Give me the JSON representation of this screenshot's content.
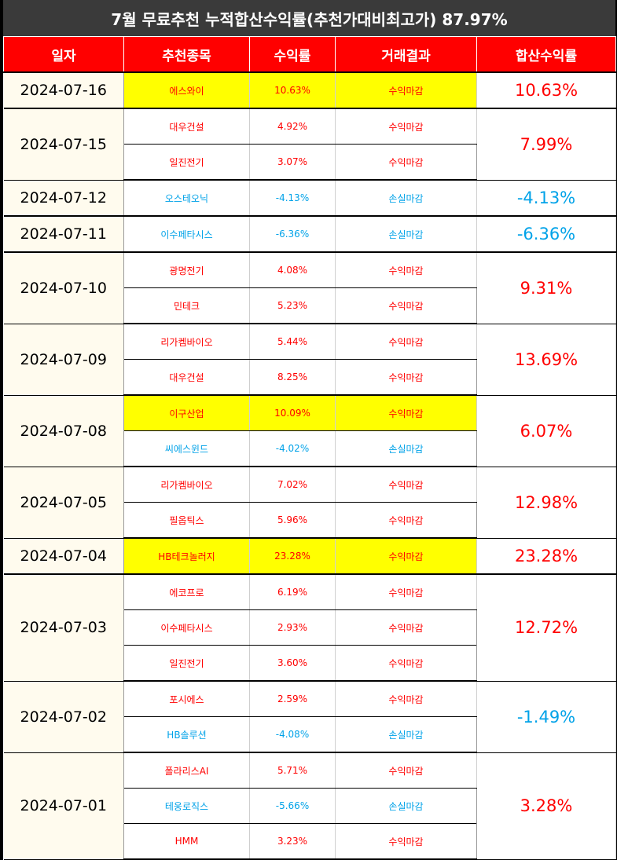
{
  "title": "7월 무료추천 누적합산수익률(추천가대비최고가) 87.97%",
  "colors": {
    "profit": "#ff0000",
    "loss": "#00a2e8",
    "highlight": "#ffff00",
    "header_bg": "#ff0000"
  },
  "headers": [
    "일자",
    "추천종목",
    "수익률",
    "거래결과",
    "합산수익률"
  ],
  "groups": [
    {
      "date": "2024-07-16",
      "total": "10.63%",
      "dir": "up",
      "stocks": [
        {
          "name": "에스와이",
          "rate": "10.63%",
          "result": "수익마감",
          "dir": "up",
          "highlight": true
        }
      ]
    },
    {
      "date": "2024-07-15",
      "total": "7.99%",
      "dir": "up",
      "stocks": [
        {
          "name": "대우건설",
          "rate": "4.92%",
          "result": "수익마감",
          "dir": "up",
          "highlight": false
        },
        {
          "name": "일진전기",
          "rate": "3.07%",
          "result": "수익마감",
          "dir": "up",
          "highlight": false
        }
      ]
    },
    {
      "date": "2024-07-12",
      "total": "-4.13%",
      "dir": "down",
      "stocks": [
        {
          "name": "오스테오닉",
          "rate": "-4.13%",
          "result": "손실마감",
          "dir": "down",
          "highlight": false
        }
      ]
    },
    {
      "date": "2024-07-11",
      "total": "-6.36%",
      "dir": "down",
      "stocks": [
        {
          "name": "이수페타시스",
          "rate": "-6.36%",
          "result": "손실마감",
          "dir": "down",
          "highlight": false
        }
      ]
    },
    {
      "date": "2024-07-10",
      "total": "9.31%",
      "dir": "up",
      "stocks": [
        {
          "name": "광명전기",
          "rate": "4.08%",
          "result": "수익마감",
          "dir": "up",
          "highlight": false
        },
        {
          "name": "민테크",
          "rate": "5.23%",
          "result": "수익마감",
          "dir": "up",
          "highlight": false
        }
      ]
    },
    {
      "date": "2024-07-09",
      "total": "13.69%",
      "dir": "up",
      "stocks": [
        {
          "name": "리가켐바이오",
          "rate": "5.44%",
          "result": "수익마감",
          "dir": "up",
          "highlight": false
        },
        {
          "name": "대우건설",
          "rate": "8.25%",
          "result": "수익마감",
          "dir": "up",
          "highlight": false
        }
      ]
    },
    {
      "date": "2024-07-08",
      "total": "6.07%",
      "dir": "up",
      "stocks": [
        {
          "name": "이구산업",
          "rate": "10.09%",
          "result": "수익마감",
          "dir": "up",
          "highlight": true
        },
        {
          "name": "씨에스윈드",
          "rate": "-4.02%",
          "result": "손실마감",
          "dir": "down",
          "highlight": false
        }
      ]
    },
    {
      "date": "2024-07-05",
      "total": "12.98%",
      "dir": "up",
      "stocks": [
        {
          "name": "리가켐바이오",
          "rate": "7.02%",
          "result": "수익마감",
          "dir": "up",
          "highlight": false
        },
        {
          "name": "필옵틱스",
          "rate": "5.96%",
          "result": "수익마감",
          "dir": "up",
          "highlight": false
        }
      ]
    },
    {
      "date": "2024-07-04",
      "total": "23.28%",
      "dir": "up",
      "stocks": [
        {
          "name": "HB테크놀러지",
          "rate": "23.28%",
          "result": "수익마감",
          "dir": "up",
          "highlight": true
        }
      ]
    },
    {
      "date": "2024-07-03",
      "total": "12.72%",
      "dir": "up",
      "stocks": [
        {
          "name": "에코프로",
          "rate": "6.19%",
          "result": "수익마감",
          "dir": "up",
          "highlight": false
        },
        {
          "name": "이수페타시스",
          "rate": "2.93%",
          "result": "수익마감",
          "dir": "up",
          "highlight": false
        },
        {
          "name": "일진전기",
          "rate": "3.60%",
          "result": "수익마감",
          "dir": "up",
          "highlight": false
        }
      ]
    },
    {
      "date": "2024-07-02",
      "total": "-1.49%",
      "dir": "down",
      "stocks": [
        {
          "name": "포시에스",
          "rate": "2.59%",
          "result": "수익마감",
          "dir": "up",
          "highlight": false
        },
        {
          "name": "HB솔루션",
          "rate": "-4.08%",
          "result": "손실마감",
          "dir": "down",
          "highlight": false
        }
      ]
    },
    {
      "date": "2024-07-01",
      "total": "3.28%",
      "dir": "up",
      "stocks": [
        {
          "name": "폴라리스AI",
          "rate": "5.71%",
          "result": "수익마감",
          "dir": "up",
          "highlight": false
        },
        {
          "name": "테웅로직스",
          "rate": "-5.66%",
          "result": "손실마감",
          "dir": "down",
          "highlight": false
        },
        {
          "name": "HMM",
          "rate": "3.23%",
          "result": "수익마감",
          "dir": "up",
          "highlight": false
        }
      ]
    }
  ]
}
